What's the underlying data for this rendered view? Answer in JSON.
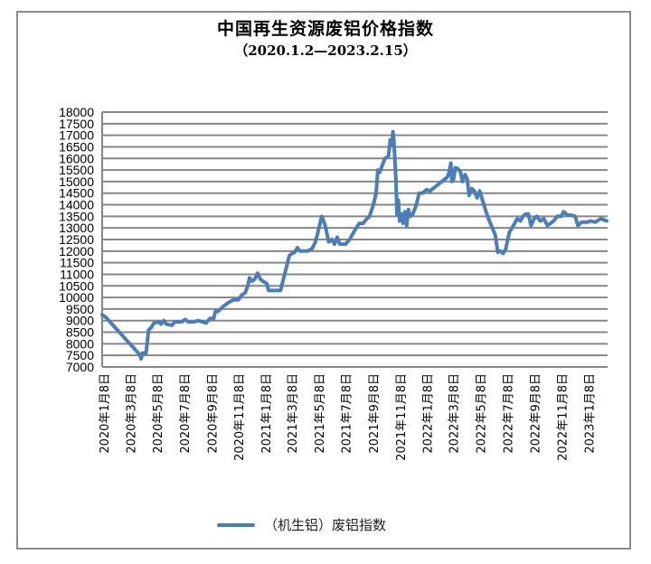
{
  "chart_data": {
    "type": "line",
    "title": "中国再生资源废铝价格指数",
    "subtitle": "（2020.1.2—2023.2.15）",
    "xlabel": "",
    "ylabel": "",
    "ylim": [
      7000,
      18000
    ],
    "ytick_step": 500,
    "yticks": [
      "18000",
      "17500",
      "17000",
      "16500",
      "16000",
      "15500",
      "15000",
      "14500",
      "14000",
      "13500",
      "13000",
      "12500",
      "12000",
      "11500",
      "11000",
      "10500",
      "10000",
      "9500",
      "9000",
      "8500",
      "8000",
      "7500",
      "7000"
    ],
    "xrange": [
      "2020-01-02",
      "2023-02-15"
    ],
    "xticks": [
      {
        "date": "2020-01-08",
        "label": "2020年1月8日"
      },
      {
        "date": "2020-03-08",
        "label": "2020年3月8日"
      },
      {
        "date": "2020-05-08",
        "label": "2020年5月8日"
      },
      {
        "date": "2020-07-08",
        "label": "2020年7月8日"
      },
      {
        "date": "2020-09-08",
        "label": "2020年9月8日"
      },
      {
        "date": "2020-11-08",
        "label": "2020年11月8日"
      },
      {
        "date": "2021-01-08",
        "label": "2021年1月8日"
      },
      {
        "date": "2021-03-08",
        "label": "2021年3月8日"
      },
      {
        "date": "2021-05-08",
        "label": "2021年5月8日"
      },
      {
        "date": "2021-07-08",
        "label": "2021年7月8日"
      },
      {
        "date": "2021-09-08",
        "label": "2021年9月8日"
      },
      {
        "date": "2021-11-08",
        "label": "2021年11月8日"
      },
      {
        "date": "2022-01-08",
        "label": "2022年1月8日"
      },
      {
        "date": "2022-03-08",
        "label": "2022年3月8日"
      },
      {
        "date": "2022-05-08",
        "label": "2022年5月8日"
      },
      {
        "date": "2022-07-08",
        "label": "2022年7月8日"
      },
      {
        "date": "2022-09-08",
        "label": "2022年9月8日"
      },
      {
        "date": "2022-11-08",
        "label": "2022年11月8日"
      },
      {
        "date": "2023-01-08",
        "label": "2023年1月8日"
      }
    ],
    "grid": true,
    "legend_position": "bottom",
    "series": [
      {
        "name": "（机生铝）废铝指数",
        "color": "#4a7ebb",
        "points": [
          [
            "2020-01-02",
            9250
          ],
          [
            "2020-01-10",
            9150
          ],
          [
            "2020-03-26",
            7550
          ],
          [
            "2020-03-30",
            7350
          ],
          [
            "2020-04-02",
            7600
          ],
          [
            "2020-04-10",
            7600
          ],
          [
            "2020-04-16",
            8600
          ],
          [
            "2020-04-22",
            8700
          ],
          [
            "2020-04-28",
            8900
          ],
          [
            "2020-05-08",
            8950
          ],
          [
            "2020-05-14",
            8850
          ],
          [
            "2020-05-20",
            9000
          ],
          [
            "2020-05-26",
            8850
          ],
          [
            "2020-06-08",
            8800
          ],
          [
            "2020-06-14",
            8950
          ],
          [
            "2020-06-30",
            8950
          ],
          [
            "2020-07-08",
            9050
          ],
          [
            "2020-07-14",
            8950
          ],
          [
            "2020-07-28",
            8950
          ],
          [
            "2020-08-06",
            9000
          ],
          [
            "2020-08-24",
            8900
          ],
          [
            "2020-09-02",
            9100
          ],
          [
            "2020-09-10",
            9100
          ],
          [
            "2020-09-14",
            9400
          ],
          [
            "2020-09-20",
            9400
          ],
          [
            "2020-10-01",
            9600
          ],
          [
            "2020-10-15",
            9800
          ],
          [
            "2020-10-25",
            9900
          ],
          [
            "2020-11-05",
            9900
          ],
          [
            "2020-11-12",
            10100
          ],
          [
            "2020-11-20",
            10200
          ],
          [
            "2020-11-26",
            10500
          ],
          [
            "2020-11-30",
            10850
          ],
          [
            "2020-12-06",
            10700
          ],
          [
            "2020-12-12",
            10800
          ],
          [
            "2020-12-18",
            11050
          ],
          [
            "2020-12-24",
            10800
          ],
          [
            "2020-12-30",
            10700
          ],
          [
            "2021-01-08",
            10600
          ],
          [
            "2021-01-12",
            10300
          ],
          [
            "2021-02-08",
            10300
          ],
          [
            "2021-02-20",
            11200
          ],
          [
            "2021-02-28",
            11800
          ],
          [
            "2021-03-06",
            11900
          ],
          [
            "2021-03-12",
            11950
          ],
          [
            "2021-03-18",
            12150
          ],
          [
            "2021-03-24",
            12000
          ],
          [
            "2021-04-10",
            12000
          ],
          [
            "2021-04-20",
            12100
          ],
          [
            "2021-04-28",
            12400
          ],
          [
            "2021-05-06",
            13000
          ],
          [
            "2021-05-12",
            13500
          ],
          [
            "2021-05-20",
            13100
          ],
          [
            "2021-05-28",
            12400
          ],
          [
            "2021-06-04",
            12500
          ],
          [
            "2021-06-10",
            12300
          ],
          [
            "2021-06-16",
            12600
          ],
          [
            "2021-06-22",
            12300
          ],
          [
            "2021-07-05",
            12300
          ],
          [
            "2021-07-14",
            12500
          ],
          [
            "2021-07-26",
            12900
          ],
          [
            "2021-08-05",
            13200
          ],
          [
            "2021-08-14",
            13200
          ],
          [
            "2021-08-20",
            13350
          ],
          [
            "2021-08-28",
            13500
          ],
          [
            "2021-09-06",
            14000
          ],
          [
            "2021-09-12",
            14500
          ],
          [
            "2021-09-16",
            15500
          ],
          [
            "2021-09-20",
            15400
          ],
          [
            "2021-09-26",
            15700
          ],
          [
            "2021-10-02",
            16000
          ],
          [
            "2021-10-10",
            16100
          ],
          [
            "2021-10-14",
            16800
          ],
          [
            "2021-10-18",
            16600
          ],
          [
            "2021-10-20",
            17150
          ],
          [
            "2021-10-22",
            16800
          ],
          [
            "2021-10-27",
            15000
          ],
          [
            "2021-10-29",
            13600
          ],
          [
            "2021-11-01",
            14200
          ],
          [
            "2021-11-04",
            13300
          ],
          [
            "2021-11-08",
            13600
          ],
          [
            "2021-11-12",
            13200
          ],
          [
            "2021-11-16",
            13700
          ],
          [
            "2021-11-20",
            13100
          ],
          [
            "2021-11-24",
            13800
          ],
          [
            "2021-11-28",
            13500
          ],
          [
            "2021-12-04",
            13600
          ],
          [
            "2021-12-12",
            14000
          ],
          [
            "2021-12-18",
            14500
          ],
          [
            "2021-12-26",
            14500
          ],
          [
            "2022-01-04",
            14650
          ],
          [
            "2022-01-12",
            14600
          ],
          [
            "2022-02-14",
            15100
          ],
          [
            "2022-02-20",
            15200
          ],
          [
            "2022-02-24",
            15400
          ],
          [
            "2022-02-28",
            15800
          ],
          [
            "2022-03-02",
            15000
          ],
          [
            "2022-03-06",
            15100
          ],
          [
            "2022-03-10",
            15600
          ],
          [
            "2022-03-16",
            15550
          ],
          [
            "2022-03-22",
            15400
          ],
          [
            "2022-03-26",
            15000
          ],
          [
            "2022-04-01",
            15300
          ],
          [
            "2022-04-06",
            15100
          ],
          [
            "2022-04-10",
            14400
          ],
          [
            "2022-04-16",
            14700
          ],
          [
            "2022-04-22",
            14600
          ],
          [
            "2022-04-28",
            14300
          ],
          [
            "2022-05-04",
            14600
          ],
          [
            "2022-05-12",
            14100
          ],
          [
            "2022-05-20",
            13600
          ],
          [
            "2022-05-26",
            13300
          ],
          [
            "2022-06-08",
            12700
          ],
          [
            "2022-06-14",
            11950
          ],
          [
            "2022-06-20",
            12000
          ],
          [
            "2022-06-26",
            11900
          ],
          [
            "2022-07-02",
            12100
          ],
          [
            "2022-07-10",
            12800
          ],
          [
            "2022-07-22",
            13200
          ],
          [
            "2022-07-28",
            13400
          ],
          [
            "2022-08-04",
            13300
          ],
          [
            "2022-08-10",
            13500
          ],
          [
            "2022-08-16",
            13600
          ],
          [
            "2022-08-22",
            13600
          ],
          [
            "2022-08-28",
            13100
          ],
          [
            "2022-09-04",
            13400
          ],
          [
            "2022-09-10",
            13500
          ],
          [
            "2022-09-18",
            13300
          ],
          [
            "2022-09-26",
            13400
          ],
          [
            "2022-10-04",
            13100
          ],
          [
            "2022-10-18",
            13300
          ],
          [
            "2022-10-26",
            13500
          ],
          [
            "2022-11-04",
            13500
          ],
          [
            "2022-11-10",
            13700
          ],
          [
            "2022-11-18",
            13550
          ],
          [
            "2022-11-28",
            13550
          ],
          [
            "2022-12-06",
            13500
          ],
          [
            "2022-12-12",
            13100
          ],
          [
            "2022-12-20",
            13250
          ],
          [
            "2023-01-02",
            13250
          ],
          [
            "2023-01-10",
            13300
          ],
          [
            "2023-01-20",
            13250
          ],
          [
            "2023-02-02",
            13400
          ],
          [
            "2023-02-15",
            13300
          ]
        ]
      }
    ]
  },
  "legend": {
    "label": "（机生铝）废铝指数"
  }
}
